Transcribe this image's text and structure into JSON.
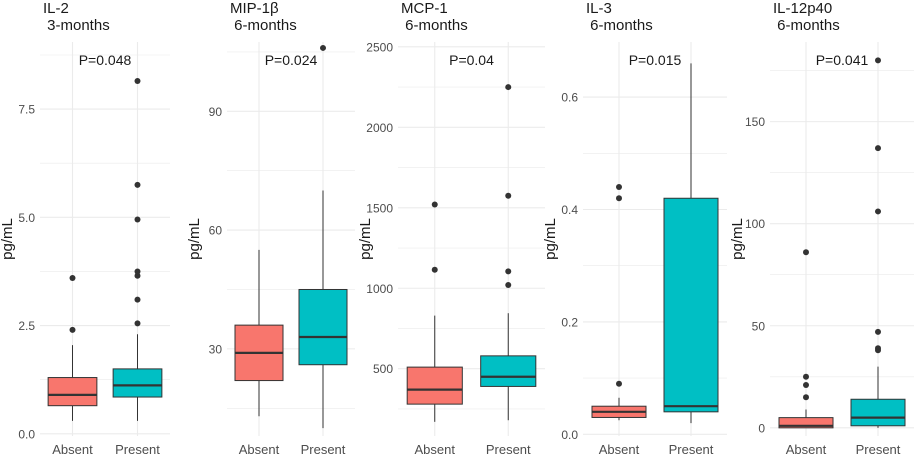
{
  "colors": {
    "absent": "#F8766D",
    "present": "#00BFC4",
    "grid": "#EBEBEB",
    "text": "#1A1A1A",
    "tick": "#4D4D4D",
    "box_line": "#333333"
  },
  "chart_data": [
    {
      "type": "boxplot",
      "title_line1": "IL-2",
      "title_line2": " 3-months",
      "pvalue_label": "P=0.048",
      "ylabel": "pg/mL",
      "categories": [
        "Absent",
        "Present"
      ],
      "ylim": [
        -0.05,
        9.05
      ],
      "yticks": [
        0.0,
        2.5,
        5.0,
        7.5
      ],
      "ytick_labels": [
        "0.0",
        "2.5",
        "5.0",
        "7.5"
      ],
      "boxes": [
        {
          "name": "Absent",
          "lower_whisker": 0.3,
          "q1": 0.65,
          "median": 0.9,
          "q3": 1.3,
          "upper_whisker": 2.05,
          "outliers": [
            2.4,
            3.6
          ]
        },
        {
          "name": "Present",
          "lower_whisker": 0.3,
          "q1": 0.85,
          "median": 1.12,
          "q3": 1.5,
          "upper_whisker": 2.3,
          "outliers": [
            2.55,
            3.1,
            3.65,
            3.75,
            4.95,
            5.75,
            8.15
          ]
        }
      ]
    },
    {
      "type": "boxplot",
      "title_line1": "MIP-1β",
      "title_line2": " 6-months",
      "pvalue_label": "P=0.024",
      "ylabel": "pg/mL",
      "categories": [
        "Absent",
        "Present"
      ],
      "ylim": [
        8,
        107.5
      ],
      "yticks": [
        30,
        60,
        90
      ],
      "ytick_labels": [
        "30",
        "60",
        "90"
      ],
      "boxes": [
        {
          "name": "Absent",
          "lower_whisker": 13,
          "q1": 22,
          "median": 29,
          "q3": 36,
          "upper_whisker": 55,
          "outliers": []
        },
        {
          "name": "Present",
          "lower_whisker": 10,
          "q1": 26,
          "median": 33,
          "q3": 45,
          "upper_whisker": 70,
          "outliers": [
            106
          ]
        }
      ]
    },
    {
      "type": "boxplot",
      "title_line1": "MCP-1",
      "title_line2": " 6-months",
      "pvalue_label": "P=0.04",
      "ylabel": "pg/mL",
      "categories": [
        "Absent",
        "Present"
      ],
      "ylim": [
        82,
        2530
      ],
      "yticks": [
        500,
        1000,
        1500,
        2000,
        2500
      ],
      "ytick_labels": [
        "500",
        "1000",
        "1500",
        "2000",
        "2500"
      ],
      "boxes": [
        {
          "name": "Absent",
          "lower_whisker": 170,
          "q1": 280,
          "median": 370,
          "q3": 510,
          "upper_whisker": 830,
          "outliers": [
            1115,
            1520
          ]
        },
        {
          "name": "Present",
          "lower_whisker": 180,
          "q1": 390,
          "median": 450,
          "q3": 580,
          "upper_whisker": 845,
          "outliers": [
            1020,
            1105,
            1575,
            2250
          ]
        }
      ]
    },
    {
      "type": "boxplot",
      "title_line1": "IL-3",
      "title_line2": " 6-months",
      "pvalue_label": "P=0.015",
      "ylabel": "pg/mL",
      "categories": [
        "Absent",
        "Present"
      ],
      "ylim": [
        -0.003,
        0.698
      ],
      "yticks": [
        0.0,
        0.2,
        0.4,
        0.6
      ],
      "ytick_labels": [
        "0.0",
        "0.2",
        "0.4",
        "0.6"
      ],
      "boxes": [
        {
          "name": "Absent",
          "lower_whisker": 0.025,
          "q1": 0.03,
          "median": 0.04,
          "q3": 0.05,
          "upper_whisker": 0.065,
          "outliers": [
            0.09,
            0.42,
            0.44
          ]
        },
        {
          "name": "Present",
          "lower_whisker": 0.02,
          "q1": 0.04,
          "median": 0.05,
          "q3": 0.42,
          "upper_whisker": 0.66,
          "outliers": []
        }
      ]
    },
    {
      "type": "boxplot",
      "title_line1": "IL-12p40",
      "title_line2": " 6-months",
      "pvalue_label": "P=0.041",
      "ylabel": "pg/mL",
      "categories": [
        "Absent",
        "Present"
      ],
      "ylim": [
        -4,
        189
      ],
      "yticks": [
        0,
        50,
        100,
        150
      ],
      "ytick_labels": [
        "0",
        "50",
        "100",
        "150"
      ],
      "boxes": [
        {
          "name": "Absent",
          "lower_whisker": 0,
          "q1": 0,
          "median": 1,
          "q3": 5,
          "upper_whisker": 9,
          "outliers": [
            15,
            21,
            25,
            86
          ]
        },
        {
          "name": "Present",
          "lower_whisker": 0,
          "q1": 1,
          "median": 5,
          "q3": 14,
          "upper_whisker": 30,
          "outliers": [
            38,
            39,
            47,
            106,
            137,
            180
          ]
        }
      ]
    }
  ]
}
